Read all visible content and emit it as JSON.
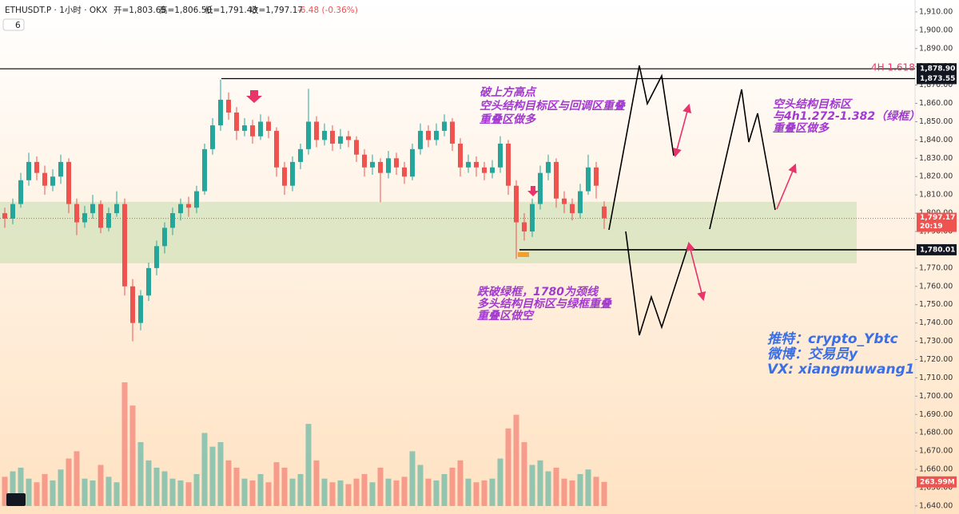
{
  "chart_data": {
    "type": "candlestick",
    "header": {
      "symbol": "ETHUSDT.P · 1小时 · OKX",
      "ohlc": [
        "开=1,803.65",
        "高=1,806.50",
        "低=1,791.43",
        "收=1,797.17"
      ],
      "change": "-6.48 (-0.36%)",
      "indicator_count": "6"
    },
    "ylim": [
      1635.6,
      1916.5
    ],
    "yticks": [
      {
        "value": 1910,
        "label": "1,910.00"
      },
      {
        "value": 1900,
        "label": "1,900.00"
      },
      {
        "value": 1890,
        "label": "1,890.00"
      },
      {
        "value": 1880,
        "label": "1,880.00"
      },
      {
        "value": 1870,
        "label": "1,870.00"
      },
      {
        "value": 1860,
        "label": "1,860.00"
      },
      {
        "value": 1850,
        "label": "1,850.00"
      },
      {
        "value": 1840,
        "label": "1,840.00"
      },
      {
        "value": 1830,
        "label": "1,830.00"
      },
      {
        "value": 1820,
        "label": "1,820.00"
      },
      {
        "value": 1810,
        "label": "1,810.00"
      },
      {
        "value": 1800,
        "label": "1,800.00"
      },
      {
        "value": 1790,
        "label": "1,790.00"
      },
      {
        "value": 1780,
        "label": "1,780.00"
      },
      {
        "value": 1770,
        "label": "1,770.00"
      },
      {
        "value": 1760,
        "label": "1,760.00"
      },
      {
        "value": 1750,
        "label": "1,750.00"
      },
      {
        "value": 1740,
        "label": "1,740.00"
      },
      {
        "value": 1730,
        "label": "1,730.00"
      },
      {
        "value": 1720,
        "label": "1,720.00"
      },
      {
        "value": 1710,
        "label": "1,710.00"
      },
      {
        "value": 1700,
        "label": "1,700.00"
      },
      {
        "value": 1690,
        "label": "1,690.00"
      },
      {
        "value": 1680,
        "label": "1,680.00"
      },
      {
        "value": 1670,
        "label": "1,670.00"
      },
      {
        "value": 1660,
        "label": "1,660.00"
      },
      {
        "value": 1650,
        "label": "1,650.00"
      },
      {
        "value": 1640,
        "label": "1,640.00"
      }
    ],
    "up_color": "#26a69a",
    "down_color": "#ef5350",
    "ohlc": [
      [
        1800,
        1803,
        1792,
        1797
      ],
      [
        1797,
        1808,
        1794,
        1805
      ],
      [
        1805,
        1822,
        1803,
        1818
      ],
      [
        1818,
        1833,
        1815,
        1828
      ],
      [
        1828,
        1831,
        1818,
        1822
      ],
      [
        1822,
        1826,
        1810,
        1815
      ],
      [
        1815,
        1824,
        1812,
        1820
      ],
      [
        1820,
        1832,
        1816,
        1828
      ],
      [
        1828,
        1830,
        1800,
        1805
      ],
      [
        1805,
        1808,
        1788,
        1795
      ],
      [
        1795,
        1804,
        1792,
        1800
      ],
      [
        1800,
        1810,
        1797,
        1805
      ],
      [
        1805,
        1807,
        1789,
        1792
      ],
      [
        1792,
        1803,
        1790,
        1800
      ],
      [
        1800,
        1812,
        1798,
        1805
      ],
      [
        1805,
        1808,
        1755,
        1760
      ],
      [
        1760,
        1764,
        1730,
        1740
      ],
      [
        1740,
        1758,
        1736,
        1755
      ],
      [
        1755,
        1773,
        1752,
        1770
      ],
      [
        1770,
        1785,
        1766,
        1782
      ],
      [
        1782,
        1795,
        1778,
        1792
      ],
      [
        1792,
        1803,
        1788,
        1800
      ],
      [
        1800,
        1808,
        1796,
        1805
      ],
      [
        1805,
        1809,
        1798,
        1803
      ],
      [
        1803,
        1815,
        1800,
        1812
      ],
      [
        1812,
        1838,
        1810,
        1835
      ],
      [
        1835,
        1852,
        1832,
        1848
      ],
      [
        1848,
        1873,
        1845,
        1862
      ],
      [
        1862,
        1866,
        1851,
        1855
      ],
      [
        1855,
        1858,
        1840,
        1845
      ],
      [
        1845,
        1852,
        1842,
        1848
      ],
      [
        1848,
        1851,
        1838,
        1842
      ],
      [
        1842,
        1854,
        1840,
        1850
      ],
      [
        1850,
        1853,
        1841,
        1845
      ],
      [
        1845,
        1847,
        1820,
        1825
      ],
      [
        1825,
        1828,
        1810,
        1815
      ],
      [
        1815,
        1831,
        1812,
        1828
      ],
      [
        1828,
        1838,
        1824,
        1835
      ],
      [
        1835,
        1868,
        1832,
        1850
      ],
      [
        1850,
        1853,
        1836,
        1840
      ],
      [
        1840,
        1849,
        1837,
        1845
      ],
      [
        1845,
        1848,
        1834,
        1838
      ],
      [
        1838,
        1846,
        1835,
        1842
      ],
      [
        1842,
        1845,
        1836,
        1840
      ],
      [
        1840,
        1842,
        1828,
        1832
      ],
      [
        1832,
        1835,
        1820,
        1825
      ],
      [
        1825,
        1832,
        1821,
        1828
      ],
      [
        1828,
        1830,
        1806,
        1822
      ],
      [
        1822,
        1834,
        1819,
        1830
      ],
      [
        1830,
        1833,
        1821,
        1825
      ],
      [
        1825,
        1828,
        1816,
        1820
      ],
      [
        1820,
        1838,
        1818,
        1835
      ],
      [
        1835,
        1849,
        1832,
        1845
      ],
      [
        1845,
        1848,
        1836,
        1840
      ],
      [
        1840,
        1849,
        1837,
        1845
      ],
      [
        1845,
        1854,
        1842,
        1850
      ],
      [
        1850,
        1852,
        1834,
        1838
      ],
      [
        1838,
        1841,
        1820,
        1825
      ],
      [
        1825,
        1832,
        1822,
        1828
      ],
      [
        1828,
        1831,
        1820,
        1825
      ],
      [
        1825,
        1828,
        1818,
        1822
      ],
      [
        1822,
        1829,
        1819,
        1825
      ],
      [
        1825,
        1842,
        1822,
        1838
      ],
      [
        1838,
        1840,
        1810,
        1815
      ],
      [
        1815,
        1818,
        1775,
        1795
      ],
      [
        1795,
        1800,
        1785,
        1790
      ],
      [
        1790,
        1808,
        1787,
        1805
      ],
      [
        1805,
        1826,
        1802,
        1822
      ],
      [
        1822,
        1832,
        1818,
        1828
      ],
      [
        1828,
        1830,
        1803,
        1808
      ],
      [
        1808,
        1812,
        1800,
        1805
      ],
      [
        1805,
        1808,
        1796,
        1800
      ],
      [
        1800,
        1816,
        1797,
        1812
      ],
      [
        1812,
        1832,
        1810,
        1825
      ],
      [
        1825,
        1828,
        1808,
        1815
      ],
      [
        1803.65,
        1806.5,
        1791.43,
        1797.17
      ]
    ],
    "volume": {
      "values": [
        320,
        380,
        420,
        300,
        260,
        350,
        280,
        400,
        520,
        600,
        300,
        280,
        450,
        320,
        260,
        1355,
        1100,
        700,
        500,
        420,
        380,
        300,
        280,
        260,
        350,
        800,
        650,
        700,
        500,
        420,
        300,
        280,
        350,
        260,
        480,
        420,
        300,
        350,
        900,
        500,
        300,
        260,
        280,
        240,
        300,
        350,
        260,
        420,
        300,
        280,
        320,
        600,
        450,
        300,
        280,
        350,
        420,
        500,
        300,
        260,
        280,
        300,
        520,
        850,
        1000,
        700,
        450,
        500,
        380,
        420,
        300,
        280,
        350,
        400,
        320,
        263.99
      ],
      "value_labels": [
        null,
        null,
        null,
        null,
        null,
        null,
        null,
        null,
        null,
        null,
        null,
        null,
        null,
        null,
        null,
        null,
        null,
        null,
        null,
        null,
        null,
        null,
        null,
        null,
        null,
        null,
        null,
        null,
        null,
        null,
        null,
        null,
        null,
        null,
        null,
        null,
        null,
        null,
        null,
        null,
        null,
        null,
        null,
        null,
        null,
        null,
        null,
        null,
        null,
        null,
        null,
        null,
        null,
        null,
        null,
        null,
        null,
        null,
        null,
        null,
        null,
        null,
        null,
        null,
        null,
        null,
        null,
        null,
        null,
        null,
        null,
        null,
        null,
        null,
        null,
        "263.99M"
      ]
    },
    "zone": [
      1772.6,
      1806.2
    ],
    "levels": [
      {
        "value": 1878.9,
        "label": "1,878.90",
        "name": "4H 1.618"
      },
      {
        "value": 1873.55,
        "label": "1,873.55"
      },
      {
        "value": 1780.01,
        "label": "1,780.01"
      }
    ],
    "last_price": {
      "value": 1797.17,
      "label": "1,797.17",
      "countdown": "20:19"
    },
    "annotations": [
      {
        "lines": [
          "破上方高点",
          "空头结构目标区与回调区重叠",
          "重叠区做多"
        ]
      },
      {
        "lines": [
          "跌破绿框，1780为颈线",
          "多头结构目标区与绿框重叠",
          "重叠区做空"
        ]
      },
      {
        "lines": [
          "空头结构目标区",
          "与4h1.272-1.382（绿框）",
          "重叠区做多"
        ]
      },
      {
        "lines": [
          "推特：crypto_Ybtc",
          "微博：交易员y",
          "VX: xiangmuwang1"
        ]
      }
    ]
  }
}
